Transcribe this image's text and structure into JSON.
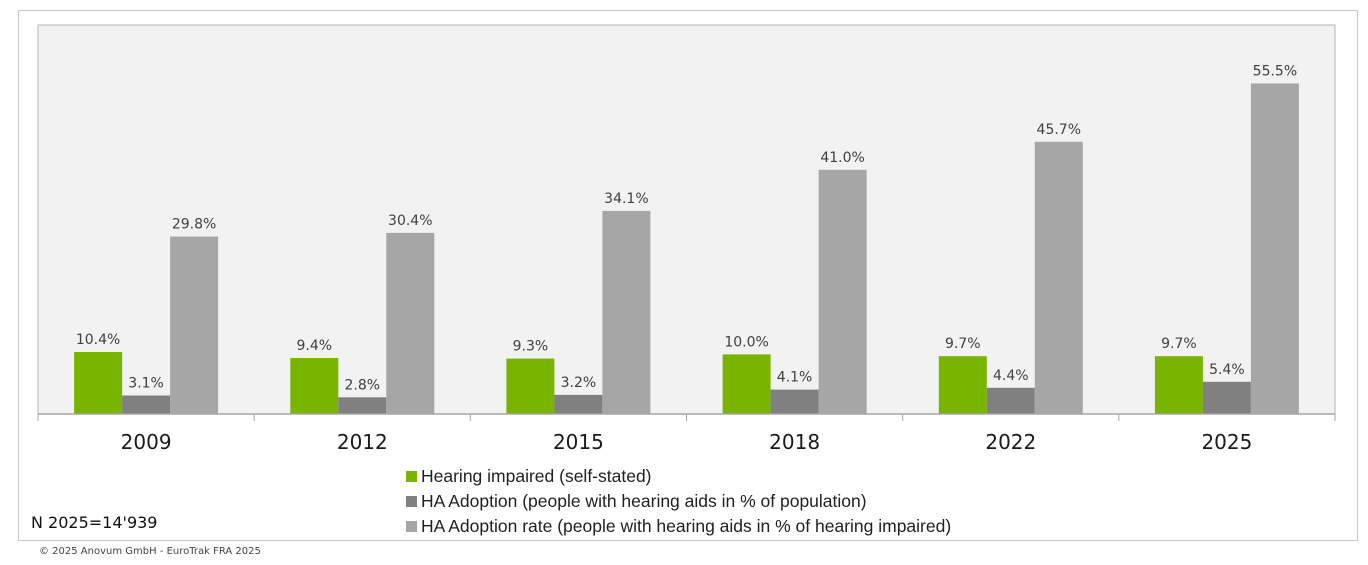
{
  "chart_data": {
    "type": "bar",
    "title": "",
    "xlabel": "",
    "ylabel": "",
    "ylim": [
      0,
      65.3
    ],
    "grid": false,
    "legend_position": "bottom-center",
    "categories": [
      "2009",
      "2012",
      "2015",
      "2018",
      "2022",
      "2025"
    ],
    "series": [
      {
        "name": "Hearing impaired (self-stated)",
        "color": "#78b400",
        "values": [
          10.4,
          9.4,
          9.3,
          10.0,
          9.7,
          9.7
        ],
        "labels": [
          "10.4%",
          "9.4%",
          "9.3%",
          "10.0%",
          "9.7%",
          "9.7%"
        ]
      },
      {
        "name": "HA Adoption (people with hearing aids in % of population)",
        "color": "#808080",
        "values": [
          3.1,
          2.8,
          3.2,
          4.1,
          4.4,
          5.4
        ],
        "labels": [
          "3.1%",
          "2.8%",
          "3.2%",
          "4.1%",
          "4.4%",
          "5.4%"
        ]
      },
      {
        "name": "HA Adoption rate (people with hearing aids in % of hearing impaired)",
        "color": "#a6a6a6",
        "values": [
          29.8,
          30.4,
          34.1,
          41.0,
          45.7,
          55.5
        ],
        "labels": [
          "29.8%",
          "30.4%",
          "34.1%",
          "41.0%",
          "45.7%",
          "55.5%"
        ]
      }
    ]
  },
  "colors": {
    "plot_background": "#f2f2f2",
    "axis": "#a6a6a6"
  },
  "footer": {
    "sample_note": "N 2025=14'939",
    "copyright": "© 2025 Anovum GmbH - EuroTrak FRA 2025"
  }
}
